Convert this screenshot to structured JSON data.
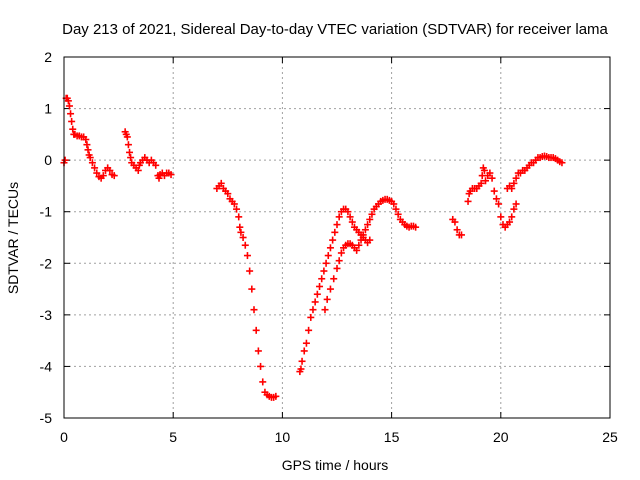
{
  "chart_data": {
    "type": "scatter",
    "title": "Day 213 of 2021, Sidereal Day-to-day VTEC variation (SDTVAR) for receiver lama",
    "xlabel": "GPS time / hours",
    "ylabel": "SDTVAR / TECUs",
    "xlim": [
      0,
      25
    ],
    "ylim": [
      -5,
      2
    ],
    "xticks": [
      "0",
      "5",
      "10",
      "15",
      "20",
      "25"
    ],
    "yticks": [
      "-5",
      "-4",
      "-3",
      "-2",
      "-1",
      "0",
      "1",
      "2"
    ],
    "grid": true,
    "marker": "plus",
    "color": "#ff0000",
    "series": [
      {
        "points": [
          [
            0.0,
            -0.05
          ],
          [
            0.05,
            0.0
          ],
          [
            0.1,
            1.2
          ],
          [
            0.15,
            1.2
          ],
          [
            0.2,
            1.15
          ],
          [
            0.25,
            1.05
          ],
          [
            0.3,
            0.9
          ],
          [
            0.35,
            0.75
          ],
          [
            0.4,
            0.6
          ],
          [
            0.45,
            0.5
          ],
          [
            0.5,
            0.5
          ],
          [
            0.6,
            0.47
          ],
          [
            0.7,
            0.47
          ],
          [
            0.8,
            0.45
          ],
          [
            0.9,
            0.45
          ],
          [
            1.0,
            0.4
          ],
          [
            1.05,
            0.3
          ],
          [
            1.1,
            0.2
          ],
          [
            1.15,
            0.1
          ],
          [
            1.2,
            0.05
          ],
          [
            1.3,
            -0.05
          ],
          [
            1.4,
            -0.15
          ],
          [
            1.5,
            -0.25
          ],
          [
            1.6,
            -0.32
          ],
          [
            1.7,
            -0.35
          ],
          [
            1.8,
            -0.3
          ],
          [
            1.9,
            -0.2
          ],
          [
            2.0,
            -0.15
          ],
          [
            2.1,
            -0.2
          ],
          [
            2.2,
            -0.28
          ],
          [
            2.3,
            -0.3
          ],
          [
            2.8,
            0.55
          ],
          [
            2.85,
            0.5
          ],
          [
            2.9,
            0.45
          ],
          [
            2.95,
            0.3
          ],
          [
            3.0,
            0.15
          ],
          [
            3.05,
            0.05
          ],
          [
            3.1,
            -0.05
          ],
          [
            3.2,
            -0.1
          ],
          [
            3.3,
            -0.15
          ],
          [
            3.4,
            -0.2
          ],
          [
            3.45,
            -0.1
          ],
          [
            3.5,
            -0.05
          ],
          [
            3.6,
            0.0
          ],
          [
            3.7,
            0.05
          ],
          [
            3.8,
            0.0
          ],
          [
            3.9,
            -0.05
          ],
          [
            4.0,
            0.0
          ],
          [
            4.1,
            -0.05
          ],
          [
            4.2,
            -0.1
          ],
          [
            4.3,
            -0.3
          ],
          [
            4.35,
            -0.35
          ],
          [
            4.4,
            -0.28
          ],
          [
            4.5,
            -0.25
          ],
          [
            4.6,
            -0.3
          ],
          [
            4.7,
            -0.25
          ],
          [
            4.8,
            -0.25
          ],
          [
            4.9,
            -0.28
          ],
          [
            7.0,
            -0.55
          ],
          [
            7.1,
            -0.5
          ],
          [
            7.2,
            -0.45
          ],
          [
            7.3,
            -0.55
          ],
          [
            7.4,
            -0.6
          ],
          [
            7.5,
            -0.65
          ],
          [
            7.6,
            -0.75
          ],
          [
            7.7,
            -0.8
          ],
          [
            7.8,
            -0.85
          ],
          [
            7.9,
            -0.95
          ],
          [
            8.0,
            -1.1
          ],
          [
            8.05,
            -1.3
          ],
          [
            8.1,
            -1.4
          ],
          [
            8.2,
            -1.5
          ],
          [
            8.3,
            -1.65
          ],
          [
            8.4,
            -1.85
          ],
          [
            8.5,
            -2.15
          ],
          [
            8.6,
            -2.5
          ],
          [
            8.7,
            -2.9
          ],
          [
            8.8,
            -3.3
          ],
          [
            8.9,
            -3.7
          ],
          [
            9.0,
            -4.0
          ],
          [
            9.1,
            -4.3
          ],
          [
            9.2,
            -4.5
          ],
          [
            9.3,
            -4.55
          ],
          [
            9.4,
            -4.58
          ],
          [
            9.5,
            -4.6
          ],
          [
            9.6,
            -4.6
          ],
          [
            9.7,
            -4.58
          ],
          [
            10.8,
            -4.1
          ],
          [
            10.85,
            -4.05
          ],
          [
            10.9,
            -3.9
          ],
          [
            11.0,
            -3.7
          ],
          [
            11.1,
            -3.55
          ],
          [
            11.2,
            -3.3
          ],
          [
            11.3,
            -3.05
          ],
          [
            11.4,
            -2.9
          ],
          [
            11.5,
            -2.75
          ],
          [
            11.6,
            -2.6
          ],
          [
            11.7,
            -2.45
          ],
          [
            11.8,
            -2.3
          ],
          [
            11.9,
            -2.15
          ],
          [
            12.0,
            -2.0
          ],
          [
            12.1,
            -1.85
          ],
          [
            12.2,
            -1.7
          ],
          [
            12.3,
            -1.55
          ],
          [
            12.4,
            -1.4
          ],
          [
            12.5,
            -1.25
          ],
          [
            12.6,
            -1.1
          ],
          [
            12.7,
            -1.0
          ],
          [
            12.8,
            -0.95
          ],
          [
            12.9,
            -0.95
          ],
          [
            13.0,
            -1.0
          ],
          [
            13.1,
            -1.1
          ],
          [
            13.2,
            -1.2
          ],
          [
            13.3,
            -1.3
          ],
          [
            13.4,
            -1.35
          ],
          [
            13.5,
            -1.4
          ],
          [
            13.6,
            -1.45
          ],
          [
            13.7,
            -1.5
          ],
          [
            13.8,
            -1.55
          ],
          [
            13.9,
            -1.6
          ],
          [
            14.0,
            -1.55
          ],
          [
            11.95,
            -2.9
          ],
          [
            12.05,
            -2.7
          ],
          [
            12.2,
            -2.5
          ],
          [
            12.35,
            -2.3
          ],
          [
            12.5,
            -2.1
          ],
          [
            12.6,
            -1.95
          ],
          [
            12.7,
            -1.8
          ],
          [
            12.8,
            -1.7
          ],
          [
            12.9,
            -1.65
          ],
          [
            13.0,
            -1.62
          ],
          [
            13.1,
            -1.62
          ],
          [
            13.2,
            -1.65
          ],
          [
            13.3,
            -1.7
          ],
          [
            13.4,
            -1.75
          ],
          [
            13.5,
            -1.65
          ],
          [
            13.6,
            -1.55
          ],
          [
            13.7,
            -1.45
          ],
          [
            13.8,
            -1.35
          ],
          [
            13.9,
            -1.25
          ],
          [
            14.0,
            -1.15
          ],
          [
            14.1,
            -1.05
          ],
          [
            14.2,
            -0.95
          ],
          [
            14.3,
            -0.9
          ],
          [
            14.4,
            -0.85
          ],
          [
            14.5,
            -0.8
          ],
          [
            14.6,
            -0.78
          ],
          [
            14.7,
            -0.76
          ],
          [
            14.8,
            -0.76
          ],
          [
            14.9,
            -0.78
          ],
          [
            15.0,
            -0.8
          ],
          [
            15.1,
            -0.85
          ],
          [
            15.2,
            -0.95
          ],
          [
            15.3,
            -1.05
          ],
          [
            15.4,
            -1.15
          ],
          [
            15.5,
            -1.2
          ],
          [
            15.6,
            -1.25
          ],
          [
            15.7,
            -1.28
          ],
          [
            15.8,
            -1.3
          ],
          [
            15.9,
            -1.28
          ],
          [
            16.0,
            -1.28
          ],
          [
            16.1,
            -1.3
          ],
          [
            17.8,
            -1.15
          ],
          [
            17.9,
            -1.2
          ],
          [
            18.0,
            -1.35
          ],
          [
            18.1,
            -1.45
          ],
          [
            18.2,
            -1.45
          ],
          [
            18.5,
            -0.8
          ],
          [
            18.55,
            -0.65
          ],
          [
            18.6,
            -0.6
          ],
          [
            18.7,
            -0.55
          ],
          [
            18.8,
            -0.55
          ],
          [
            18.9,
            -0.55
          ],
          [
            19.0,
            -0.5
          ],
          [
            19.1,
            -0.45
          ],
          [
            19.15,
            -0.3
          ],
          [
            19.2,
            -0.15
          ],
          [
            19.25,
            -0.2
          ],
          [
            19.3,
            -0.4
          ],
          [
            19.4,
            -0.3
          ],
          [
            19.5,
            -0.25
          ],
          [
            19.6,
            -0.35
          ],
          [
            19.7,
            -0.6
          ],
          [
            19.8,
            -0.75
          ],
          [
            19.9,
            -0.85
          ],
          [
            20.0,
            -1.1
          ],
          [
            20.1,
            -1.25
          ],
          [
            20.2,
            -1.3
          ],
          [
            20.3,
            -1.25
          ],
          [
            20.4,
            -1.2
          ],
          [
            20.5,
            -1.1
          ],
          [
            20.6,
            -0.95
          ],
          [
            20.7,
            -0.85
          ],
          [
            20.3,
            -0.55
          ],
          [
            20.4,
            -0.5
          ],
          [
            20.5,
            -0.55
          ],
          [
            20.6,
            -0.45
          ],
          [
            20.7,
            -0.35
          ],
          [
            20.8,
            -0.25
          ],
          [
            20.9,
            -0.25
          ],
          [
            21.0,
            -0.2
          ],
          [
            21.1,
            -0.2
          ],
          [
            21.2,
            -0.15
          ],
          [
            21.3,
            -0.1
          ],
          [
            21.4,
            -0.05
          ],
          [
            21.5,
            -0.05
          ],
          [
            21.6,
            0.0
          ],
          [
            21.7,
            0.05
          ],
          [
            21.8,
            0.05
          ],
          [
            21.9,
            0.07
          ],
          [
            22.0,
            0.08
          ],
          [
            22.1,
            0.07
          ],
          [
            22.2,
            0.05
          ],
          [
            22.3,
            0.05
          ],
          [
            22.4,
            0.05
          ],
          [
            22.5,
            0.03
          ],
          [
            22.6,
            0.0
          ],
          [
            22.7,
            -0.03
          ],
          [
            22.8,
            -0.05
          ]
        ]
      }
    ]
  }
}
